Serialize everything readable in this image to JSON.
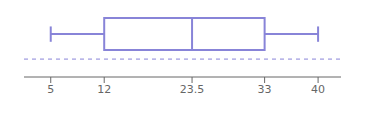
{
  "chart_data": {
    "type": "box",
    "min": 5,
    "q1": 12,
    "median": 23.5,
    "q3": 33,
    "max": 40,
    "xlim": [
      1.5,
      43
    ],
    "xticks": [
      5,
      12,
      23.5,
      33,
      40
    ],
    "tick_labels": "x"
  }
}
